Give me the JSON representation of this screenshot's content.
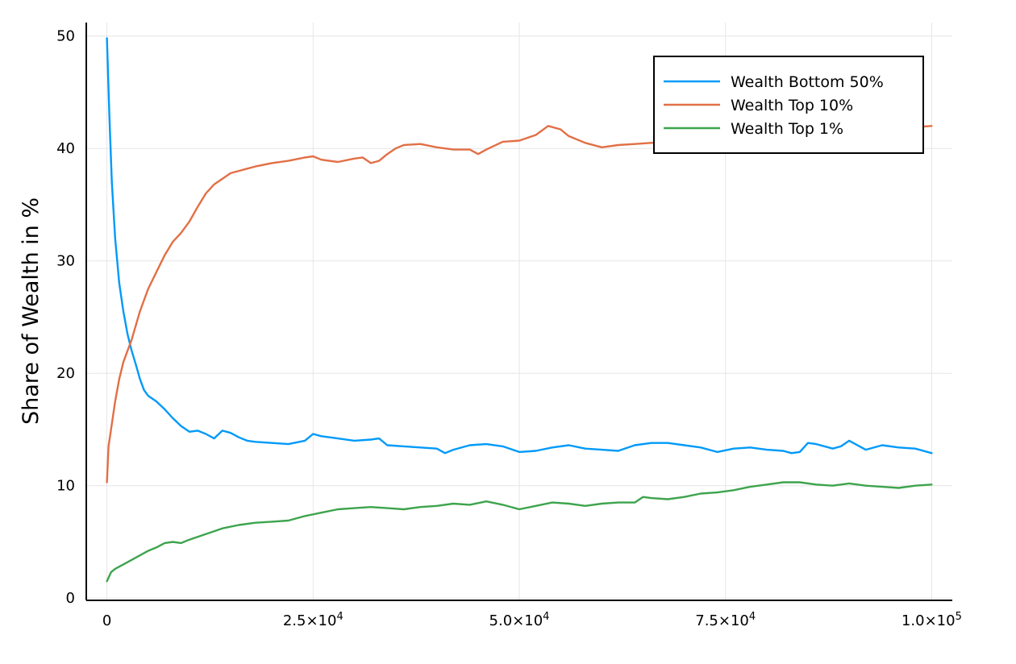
{
  "chart_data": {
    "type": "line",
    "title": "",
    "xlabel": "",
    "ylabel": "Share of Wealth in %",
    "xlim": [
      -2500,
      102500
    ],
    "ylim": [
      -0.2,
      51.2
    ],
    "grid": true,
    "legend_position": "top-right",
    "x_ticks": [
      {
        "value": 0,
        "mantissa": "0",
        "exponent": ""
      },
      {
        "value": 25000,
        "mantissa": "2.5×10",
        "exponent": "4"
      },
      {
        "value": 50000,
        "mantissa": "5.0×10",
        "exponent": "4"
      },
      {
        "value": 75000,
        "mantissa": "7.5×10",
        "exponent": "4"
      },
      {
        "value": 100000,
        "mantissa": "1.0×10",
        "exponent": "5"
      }
    ],
    "y_ticks": [
      {
        "value": 0,
        "label": "0"
      },
      {
        "value": 10,
        "label": "10"
      },
      {
        "value": 20,
        "label": "20"
      },
      {
        "value": 30,
        "label": "30"
      },
      {
        "value": 40,
        "label": "40"
      },
      {
        "value": 50,
        "label": "50"
      }
    ],
    "series": [
      {
        "name": "Wealth Bottom 50%",
        "color": "#009af9",
        "x": [
          0,
          300,
          600,
          1000,
          1500,
          2000,
          2500,
          3000,
          3500,
          4000,
          4500,
          5000,
          6000,
          7000,
          8000,
          9000,
          10000,
          11000,
          12000,
          13000,
          14000,
          15000,
          16000,
          17000,
          18000,
          20000,
          22000,
          24000,
          25000,
          26000,
          28000,
          30000,
          32000,
          33000,
          34000,
          36000,
          38000,
          40000,
          41000,
          42000,
          44000,
          46000,
          48000,
          50000,
          52000,
          54000,
          56000,
          58000,
          60000,
          62000,
          64000,
          66000,
          68000,
          70000,
          72000,
          74000,
          76000,
          78000,
          80000,
          82000,
          83000,
          84000,
          85000,
          86000,
          88000,
          89000,
          90000,
          92000,
          94000,
          96000,
          98000,
          100000
        ],
        "y": [
          49.8,
          43.0,
          37.0,
          32.0,
          28.0,
          25.5,
          23.5,
          22.0,
          20.8,
          19.5,
          18.5,
          18.0,
          17.5,
          16.8,
          16.0,
          15.3,
          14.8,
          14.9,
          14.6,
          14.2,
          14.9,
          14.7,
          14.3,
          14.0,
          13.9,
          13.8,
          13.7,
          14.0,
          14.6,
          14.4,
          14.2,
          14.0,
          14.1,
          14.2,
          13.6,
          13.5,
          13.4,
          13.3,
          12.9,
          13.2,
          13.6,
          13.7,
          13.5,
          13.0,
          13.1,
          13.4,
          13.6,
          13.3,
          13.2,
          13.1,
          13.6,
          13.8,
          13.8,
          13.6,
          13.4,
          13.0,
          13.3,
          13.4,
          13.2,
          13.1,
          12.9,
          13.0,
          13.8,
          13.7,
          13.3,
          13.5,
          14.0,
          13.2,
          13.6,
          13.4,
          13.3,
          12.9
        ]
      },
      {
        "name": "Wealth Top 10%",
        "color": "#e26f46",
        "x": [
          0,
          200,
          500,
          1000,
          1500,
          2000,
          3000,
          4000,
          5000,
          6000,
          7000,
          8000,
          9000,
          10000,
          11000,
          12000,
          13000,
          14000,
          15000,
          16000,
          17000,
          18000,
          20000,
          22000,
          24000,
          25000,
          26000,
          28000,
          30000,
          31000,
          32000,
          33000,
          34000,
          35000,
          36000,
          38000,
          40000,
          42000,
          44000,
          45000,
          46000,
          48000,
          50000,
          52000,
          53500,
          55000,
          56000,
          58000,
          60000,
          62000,
          64000,
          66000,
          68000,
          70000,
          72000,
          74000,
          76000,
          78000,
          80000,
          82000,
          84000,
          86000,
          88000,
          90000,
          92000,
          94000,
          96000,
          98000,
          100000
        ],
        "y": [
          10.3,
          13.5,
          15.0,
          17.5,
          19.5,
          21.0,
          23.0,
          25.5,
          27.5,
          29.0,
          30.5,
          31.7,
          32.5,
          33.5,
          34.8,
          36.0,
          36.8,
          37.3,
          37.8,
          38.0,
          38.2,
          38.4,
          38.7,
          38.9,
          39.2,
          39.3,
          39.0,
          38.8,
          39.1,
          39.2,
          38.7,
          38.9,
          39.5,
          40.0,
          40.3,
          40.4,
          40.1,
          39.9,
          39.9,
          39.5,
          39.9,
          40.6,
          40.7,
          41.2,
          42.0,
          41.7,
          41.1,
          40.5,
          40.1,
          40.3,
          40.4,
          40.5,
          40.6,
          40.8,
          41.0,
          41.1,
          41.2,
          41.4,
          41.5,
          41.5,
          41.6,
          41.6,
          41.7,
          41.7,
          41.8,
          41.8,
          41.9,
          41.9,
          42.0
        ]
      },
      {
        "name": "Wealth Top 1%",
        "color": "#3da44d",
        "x": [
          0,
          500,
          1000,
          2000,
          3000,
          4000,
          5000,
          6000,
          7000,
          8000,
          9000,
          10000,
          12000,
          14000,
          16000,
          18000,
          20000,
          22000,
          24000,
          26000,
          28000,
          30000,
          32000,
          34000,
          36000,
          38000,
          40000,
          42000,
          44000,
          46000,
          48000,
          50000,
          52000,
          54000,
          56000,
          58000,
          60000,
          62000,
          64000,
          65000,
          66000,
          68000,
          70000,
          72000,
          74000,
          76000,
          78000,
          80000,
          82000,
          84000,
          86000,
          88000,
          90000,
          92000,
          94000,
          96000,
          98000,
          100000
        ],
        "y": [
          1.5,
          2.3,
          2.6,
          3.0,
          3.4,
          3.8,
          4.2,
          4.5,
          4.9,
          5.0,
          4.9,
          5.2,
          5.7,
          6.2,
          6.5,
          6.7,
          6.8,
          6.9,
          7.3,
          7.6,
          7.9,
          8.0,
          8.1,
          8.0,
          7.9,
          8.1,
          8.2,
          8.4,
          8.3,
          8.6,
          8.3,
          7.9,
          8.2,
          8.5,
          8.4,
          8.2,
          8.4,
          8.5,
          8.5,
          9.0,
          8.9,
          8.8,
          9.0,
          9.3,
          9.4,
          9.6,
          9.9,
          10.1,
          10.3,
          10.3,
          10.1,
          10.0,
          10.2,
          10.0,
          9.9,
          9.8,
          10.0,
          10.1
        ]
      }
    ]
  }
}
